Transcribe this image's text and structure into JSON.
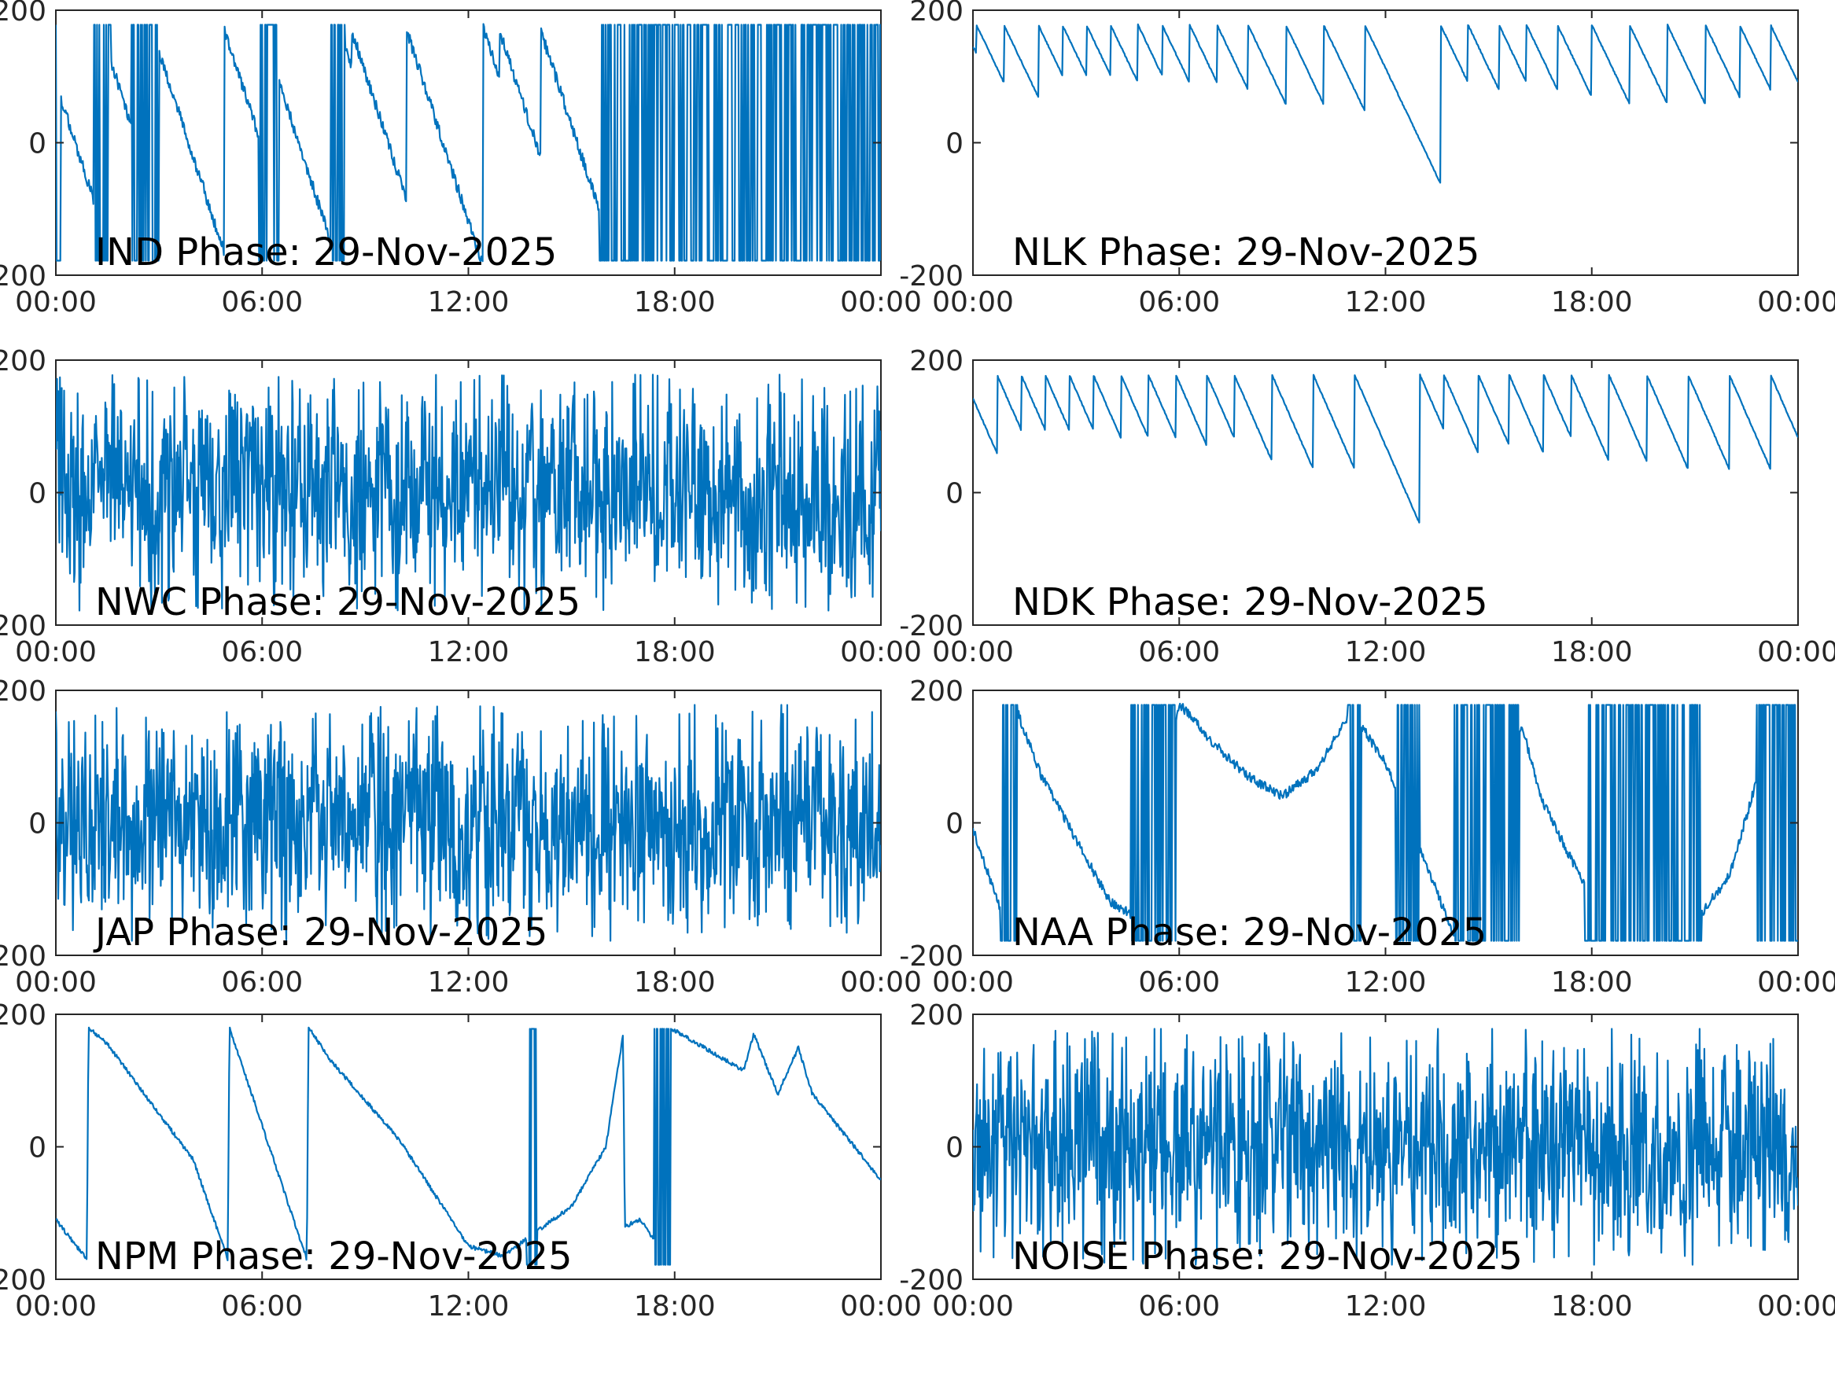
{
  "figure": {
    "line_color": "#0072BD",
    "axis_color": "#262626",
    "background": "#ffffff"
  },
  "chart_data": [
    {
      "type": "line",
      "label": "IND Phase: 29-Nov-2025",
      "x_ticks": [
        "00:00",
        "06:00",
        "12:00",
        "18:00",
        "00:00"
      ],
      "y_ticks": [
        "-200",
        "0",
        "200"
      ],
      "x_range_hours": [
        0,
        24
      ],
      "ylim": [
        -200,
        200
      ],
      "grid": false,
      "pattern": {
        "style": "mixed",
        "wraps": [
          1.3,
          2.8,
          4.9,
          6.0,
          8.6,
          10.2,
          12.9,
          14.1
        ],
        "slope": -160,
        "noise": 18,
        "chaotic": [
          [
            0.0,
            0.15
          ],
          [
            1.1,
            1.6
          ],
          [
            2.2,
            3.0
          ],
          [
            5.9,
            6.5
          ],
          [
            8.0,
            8.4
          ],
          [
            15.8,
            24.0
          ]
        ]
      }
    },
    {
      "type": "line",
      "label": "NLK Phase: 29-Nov-2025",
      "x_ticks": [
        "00:00",
        "06:00",
        "12:00",
        "18:00",
        "00:00"
      ],
      "y_ticks": [
        "-200",
        "0",
        "200"
      ],
      "x_range_hours": [
        0,
        24
      ],
      "ylim": [
        -200,
        200
      ],
      "grid": false,
      "pattern": {
        "style": "sawtooth",
        "wraps": [
          0.1,
          0.9,
          1.9,
          2.6,
          3.3,
          4.0,
          4.8,
          5.5,
          6.3,
          7.1,
          8.0,
          9.1,
          10.2,
          11.4,
          13.6,
          14.4,
          15.3,
          16.1,
          17.0,
          18.0,
          19.1,
          20.2,
          21.3,
          22.3,
          23.2
        ],
        "slope": -330,
        "noise": 2
      }
    },
    {
      "type": "line",
      "label": "NWC Phase: 29-Nov-2025",
      "x_ticks": [
        "00:00",
        "06:00",
        "12:00",
        "18:00",
        "00:00"
      ],
      "y_ticks": [
        "-200",
        "0",
        "200"
      ],
      "x_range_hours": [
        0,
        24
      ],
      "ylim": [
        -200,
        200
      ],
      "grid": false,
      "pattern": {
        "style": "noise",
        "period_hours": 0.08,
        "noise": 150
      }
    },
    {
      "type": "line",
      "label": "NDK Phase: 29-Nov-2025",
      "x_ticks": [
        "00:00",
        "06:00",
        "12:00",
        "18:00",
        "00:00"
      ],
      "y_ticks": [
        "-200",
        "0",
        "200"
      ],
      "x_range_hours": [
        0,
        24
      ],
      "ylim": [
        -200,
        200
      ],
      "grid": false,
      "pattern": {
        "style": "sawtooth",
        "wraps": [
          0.7,
          1.4,
          2.1,
          2.8,
          3.5,
          4.3,
          5.1,
          5.9,
          6.8,
          7.6,
          8.7,
          9.9,
          11.1,
          13.0,
          13.7,
          14.7,
          15.6,
          16.6,
          17.4,
          18.5,
          19.6,
          20.8,
          22.0,
          23.2
        ],
        "slope": -360,
        "noise": 2
      }
    },
    {
      "type": "line",
      "label": "JAP Phase: 29-Nov-2025",
      "x_ticks": [
        "00:00",
        "06:00",
        "12:00",
        "18:00",
        "00:00"
      ],
      "y_ticks": [
        "-200",
        "0",
        "200"
      ],
      "x_range_hours": [
        0,
        24
      ],
      "ylim": [
        -200,
        200
      ],
      "grid": false,
      "pattern": {
        "style": "noise",
        "period_hours": 0.06,
        "noise": 175
      }
    },
    {
      "type": "line",
      "label": "NAA Phase: 29-Nov-2025",
      "x_ticks": [
        "00:00",
        "06:00",
        "12:00",
        "18:00",
        "00:00"
      ],
      "y_ticks": [
        "-200",
        "0",
        "200"
      ],
      "x_range_hours": [
        0,
        24
      ],
      "ylim": [
        -200,
        200
      ],
      "grid": false,
      "pattern": {
        "style": "curve",
        "keypoints": [
          [
            0.0,
            -10
          ],
          [
            1.0,
            -160
          ],
          [
            1.2,
            180
          ],
          [
            2.0,
            70
          ],
          [
            4.0,
            -120
          ],
          [
            5.0,
            -150
          ],
          [
            6.0,
            180
          ],
          [
            7.0,
            120
          ],
          [
            8.0,
            70
          ],
          [
            9.0,
            40
          ],
          [
            10.0,
            80
          ],
          [
            11.0,
            170
          ],
          [
            12.0,
            90
          ],
          [
            14.0,
            -170
          ],
          [
            15.0,
            150
          ],
          [
            16.0,
            140
          ],
          [
            16.5,
            40
          ],
          [
            18.5,
            -170
          ],
          [
            19.0,
            -180
          ],
          [
            21.0,
            -150
          ],
          [
            22.0,
            -80
          ],
          [
            23.0,
            100
          ],
          [
            24.0,
            150
          ]
        ],
        "noise": 14,
        "chaotic": [
          [
            0.8,
            1.3
          ],
          [
            4.6,
            5.9
          ],
          [
            10.9,
            11.3
          ],
          [
            12.3,
            13.0
          ],
          [
            14.0,
            15.9
          ],
          [
            17.8,
            21.2
          ],
          [
            22.8,
            24.0
          ]
        ]
      }
    },
    {
      "type": "line",
      "label": "NPM Phase: 29-Nov-2025",
      "x_ticks": [
        "00:00",
        "06:00",
        "12:00",
        "18:00",
        "00:00"
      ],
      "y_ticks": [
        "-200",
        "0",
        "200"
      ],
      "x_range_hours": [
        0,
        24
      ],
      "ylim": [
        -200,
        200
      ],
      "grid": false,
      "pattern": {
        "style": "curve",
        "keypoints": [
          [
            0.0,
            -110
          ],
          [
            0.6,
            -150
          ],
          [
            0.9,
            -170
          ],
          [
            0.95,
            180
          ],
          [
            1.5,
            155
          ],
          [
            2.0,
            120
          ],
          [
            4.0,
            -20
          ],
          [
            5.0,
            -170
          ],
          [
            5.05,
            180
          ],
          [
            7.3,
            -170
          ],
          [
            7.35,
            180
          ],
          [
            8.0,
            130
          ],
          [
            10.0,
            10
          ],
          [
            12.0,
            -150
          ],
          [
            13.0,
            -165
          ],
          [
            15.0,
            -90
          ],
          [
            16.0,
            0
          ],
          [
            16.5,
            170
          ],
          [
            16.55,
            -120
          ],
          [
            17.0,
            -110
          ],
          [
            17.8,
            -170
          ],
          [
            17.85,
            180
          ],
          [
            20.0,
            115
          ],
          [
            20.3,
            170
          ],
          [
            21.0,
            80
          ],
          [
            21.6,
            150
          ],
          [
            22.0,
            80
          ],
          [
            24.0,
            -50
          ]
        ],
        "noise": 6,
        "chaotic": [
          [
            13.7,
            14.0
          ],
          [
            17.4,
            17.9
          ]
        ]
      }
    },
    {
      "type": "line",
      "label": "NOISE Phase: 29-Nov-2025",
      "x_ticks": [
        "00:00",
        "06:00",
        "12:00",
        "18:00",
        "00:00"
      ],
      "y_ticks": [
        "-200",
        "0",
        "200"
      ],
      "x_range_hours": [
        0,
        24
      ],
      "ylim": [
        -200,
        200
      ],
      "grid": false,
      "pattern": {
        "style": "noise",
        "period_hours": 0.07,
        "noise": 150
      }
    }
  ]
}
